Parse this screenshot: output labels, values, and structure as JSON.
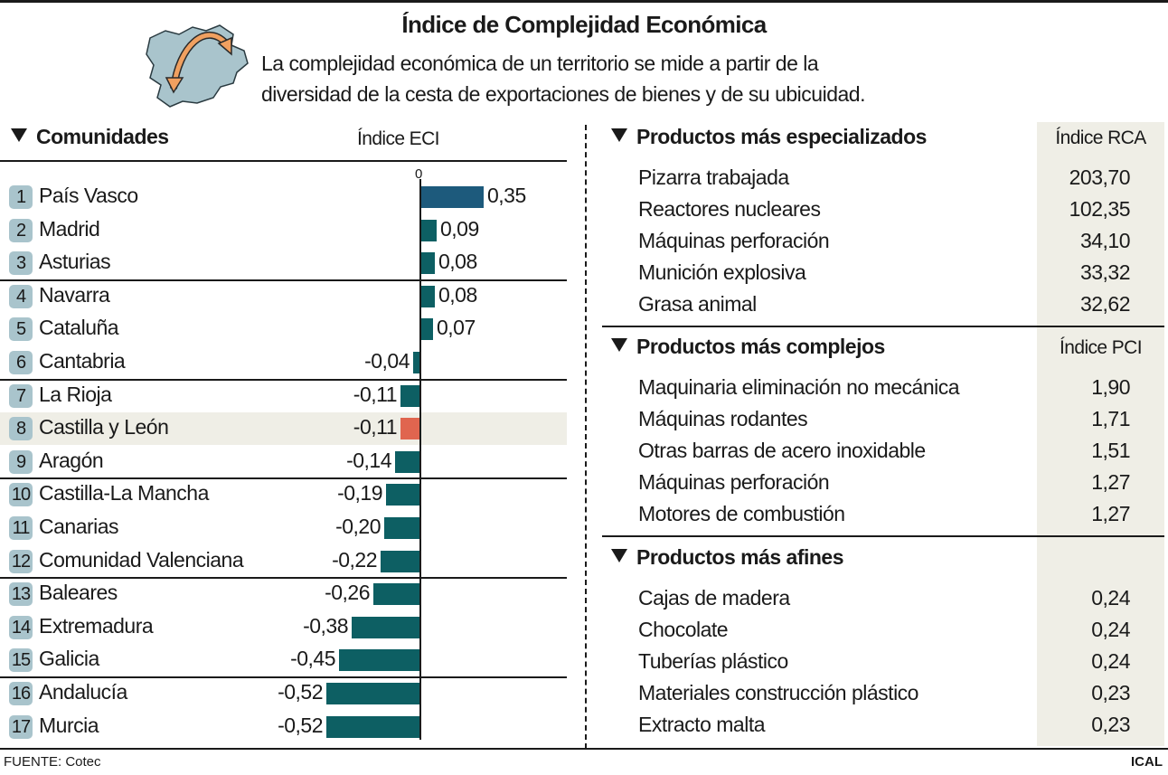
{
  "header": {
    "title": "Índice de Complejidad Económica",
    "subtitle_lines": [
      "La complejidad económica de un territorio se mide a partir de la",
      "diversidad de la cesta de exportaciones de bienes y de su ubicuidad."
    ],
    "icon": "castilla-y-leon-map-arrow-icon"
  },
  "left": {
    "section_title": "Comunidades",
    "column_header": "Índice ECI",
    "zero_label": "0"
  },
  "chart_data": {
    "type": "bar",
    "orientation": "horizontal",
    "ylabel": "Índice ECI",
    "ranks": [
      "1",
      "2",
      "3",
      "4",
      "5",
      "6",
      "7",
      "8",
      "9",
      "10",
      "11",
      "12",
      "13",
      "14",
      "15",
      "16",
      "17"
    ],
    "categories": [
      "País Vasco",
      "Madrid",
      "Asturias",
      "Navarra",
      "Cataluña",
      "Cantabria",
      "La Rioja",
      "Castilla y León",
      "Aragón",
      "Castilla-La Mancha",
      "Canarias",
      "Comunidad Valenciana",
      "Baleares",
      "Extremadura",
      "Galicia",
      "Andalucía",
      "Murcia"
    ],
    "values": [
      0.35,
      0.09,
      0.08,
      0.08,
      0.07,
      -0.04,
      -0.11,
      -0.11,
      -0.14,
      -0.19,
      -0.2,
      -0.22,
      -0.26,
      -0.38,
      -0.45,
      -0.52,
      -0.52
    ],
    "labels": [
      "0,35",
      "0,09",
      "0,08",
      "0,08",
      "0,07",
      "-0,04",
      "-0,11",
      "-0,11",
      "-0,14",
      "-0,19",
      "-0,20",
      "-0,22",
      "-0,26",
      "-0,38",
      "-0,45",
      "-0,52",
      "-0,52"
    ],
    "highlight": "Castilla y León",
    "colors": {
      "default": "#0d5f63",
      "first": "#1d5a7c",
      "highlight": "#e0654f",
      "highlight_row": "#efeee6",
      "badge": "#a9c4cc"
    }
  },
  "right": {
    "sections": [
      {
        "title": "Productos más especializados",
        "column_header": "Índice RCA",
        "items": [
          {
            "name": "Pizarra trabajada",
            "value": "203,70"
          },
          {
            "name": "Reactores nucleares",
            "value": "102,35"
          },
          {
            "name": "Máquinas perforación",
            "value": "34,10"
          },
          {
            "name": "Munición explosiva",
            "value": "33,32"
          },
          {
            "name": "Grasa animal",
            "value": "32,62"
          }
        ]
      },
      {
        "title": "Productos más complejos",
        "column_header": "Índice PCI",
        "items": [
          {
            "name": "Maquinaria eliminación no mecánica",
            "value": "1,90"
          },
          {
            "name": "Máquinas rodantes",
            "value": "1,71"
          },
          {
            "name": "Otras barras de acero inoxidable",
            "value": "1,51"
          },
          {
            "name": "Máquinas perforación",
            "value": "1,27"
          },
          {
            "name": "Motores de combustión",
            "value": "1,27"
          }
        ]
      },
      {
        "title": "Productos más afines",
        "column_header": "",
        "items": [
          {
            "name": "Cajas de madera",
            "value": "0,24"
          },
          {
            "name": "Chocolate",
            "value": "0,24"
          },
          {
            "name": "Tuberías plástico",
            "value": "0,24"
          },
          {
            "name": "Materiales construcción plástico",
            "value": "0,23"
          },
          {
            "name": "Extracto malta",
            "value": "0,23"
          }
        ]
      }
    ]
  },
  "footer": {
    "source": "FUENTE: Cotec",
    "brand": "ICAL"
  }
}
